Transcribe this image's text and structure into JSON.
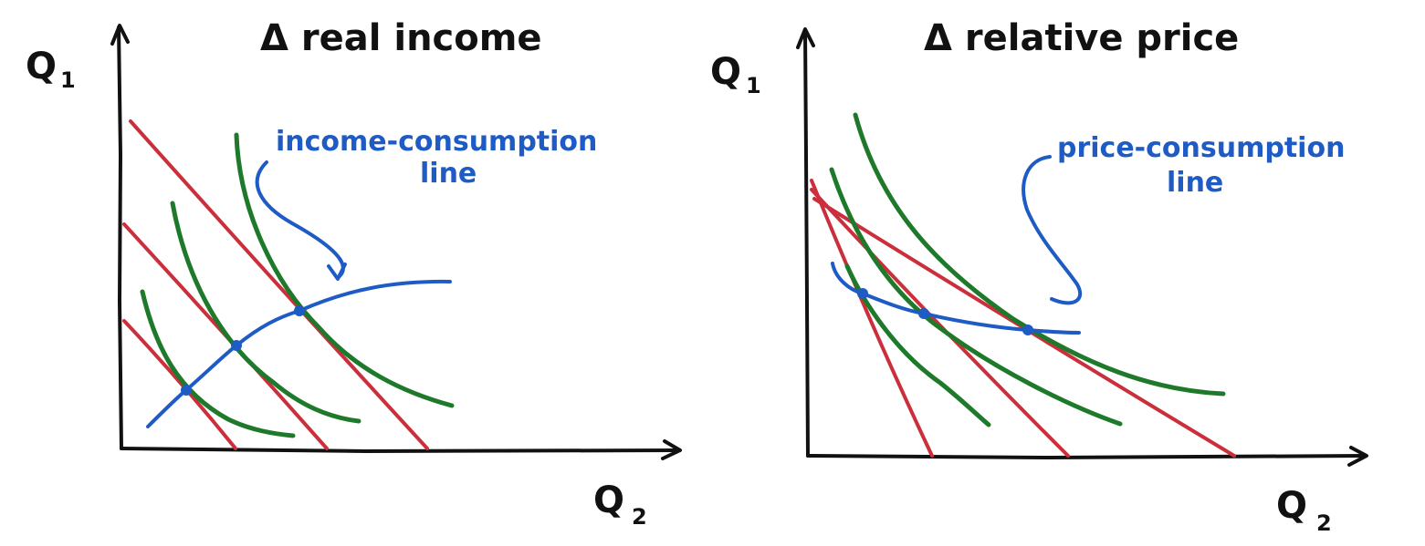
{
  "left_panel": {
    "title": "Δ real income",
    "y_axis": {
      "symbol": "Q",
      "subscript": "1"
    },
    "x_axis": {
      "symbol": "Q",
      "subscript": "2"
    },
    "annotation": {
      "line1": "income-consumption",
      "line2": "line"
    },
    "budget_line_count": 3,
    "indifference_curve_count": 3,
    "tangency_point_count": 3
  },
  "right_panel": {
    "title": "Δ relative price",
    "y_axis": {
      "symbol": "Q",
      "subscript": "1"
    },
    "x_axis": {
      "symbol": "Q",
      "subscript": "2"
    },
    "annotation": {
      "line1": "price-consumption",
      "line2": "line"
    },
    "budget_line_count": 3,
    "indifference_curve_count": 3,
    "tangency_point_count": 3
  },
  "colors": {
    "axis": "#111111",
    "budget_line": "#cc2f3c",
    "indifference_curve": "#1e7a2a",
    "consumption_line": "#1f5bc4"
  }
}
